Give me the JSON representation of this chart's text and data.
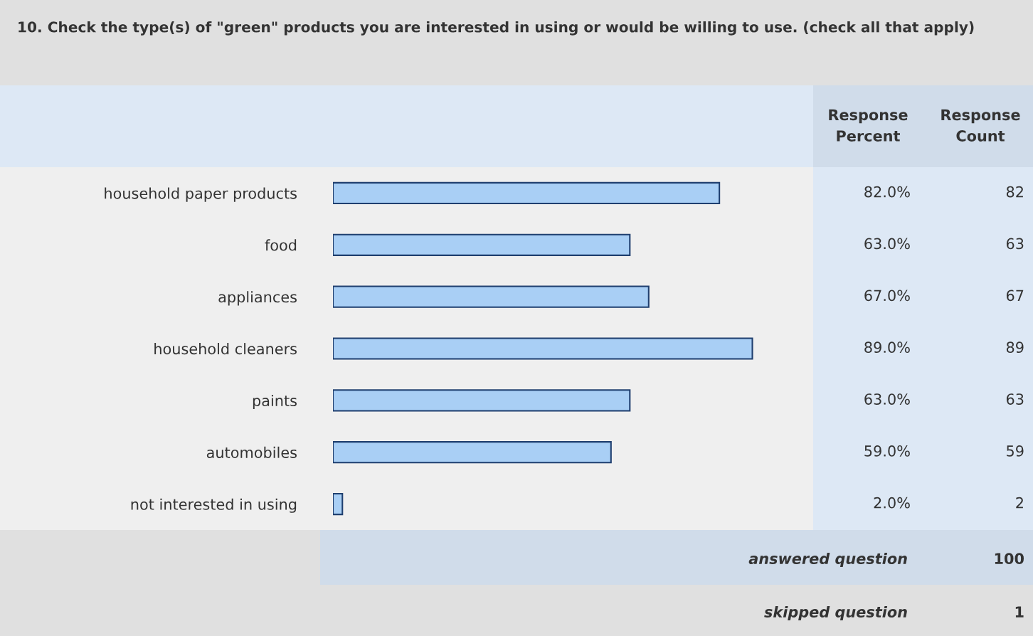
{
  "chart_data": {
    "type": "bar",
    "orientation": "horizontal",
    "title": "10. Check the type(s) of \"green\" products you are interested in using or would be willing to use. (check all that apply)",
    "categories": [
      "household paper products",
      "food",
      "appliances",
      "household cleaners",
      "paints",
      "automobiles",
      "not interested in using"
    ],
    "values": [
      82,
      63,
      67,
      89,
      63,
      59,
      2
    ],
    "color": "#a9cff5",
    "value_labels": [
      "82.0%",
      "63.0%",
      "67.0%",
      "89.0%",
      "63.0%",
      "59.0%",
      "2.0%"
    ],
    "tick_labels": "y",
    "grid": false,
    "legend": false,
    "annotations": [
      "Response Percent",
      "Response Count",
      "82",
      "63",
      "67",
      "89",
      "63",
      "59",
      "2",
      "answered question",
      "100",
      "skipped question",
      "1"
    ]
  }
}
